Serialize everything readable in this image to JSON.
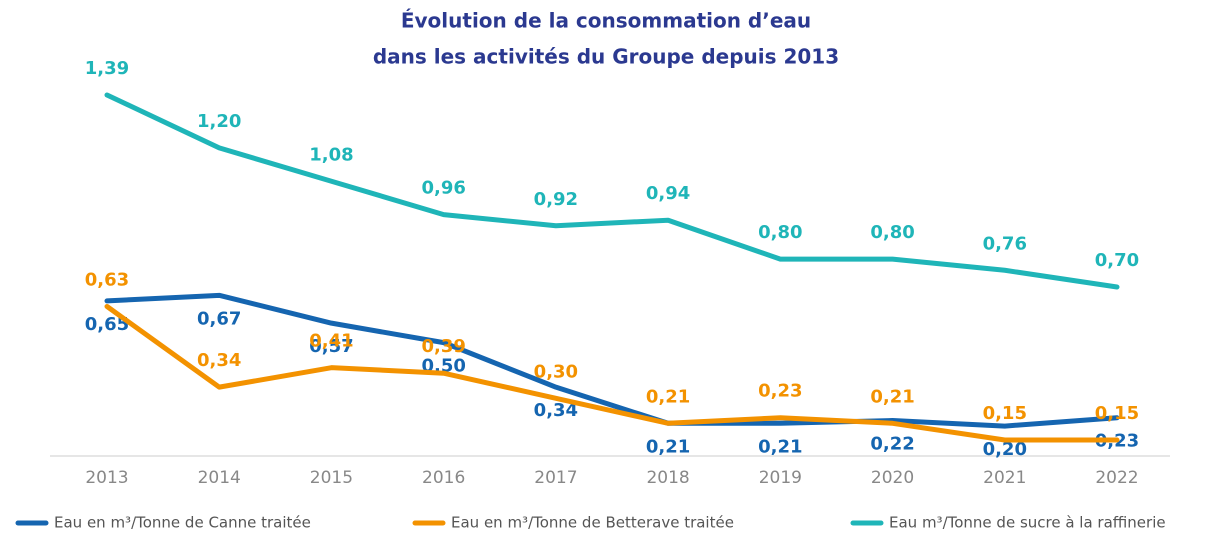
{
  "chart_data": {
    "type": "line",
    "title": [
      "Évolution de la consommation d’eau",
      "dans les activités du Groupe depuis 2013"
    ],
    "categories": [
      "2013",
      "2014",
      "2015",
      "2016",
      "2017",
      "2018",
      "2019",
      "2020",
      "2021",
      "2022"
    ],
    "series": [
      {
        "name": "Eau en m³/Tonne de Canne traitée",
        "color": "#1565b0",
        "values": [
          0.65,
          0.67,
          0.57,
          0.5,
          0.34,
          0.21,
          0.21,
          0.22,
          0.2,
          0.23
        ],
        "value_labels": [
          "0,65",
          "0,67",
          "0,57",
          "0,50",
          "0,34",
          "0,21",
          "0,21",
          "0,22",
          "0,20",
          "0,23"
        ]
      },
      {
        "name": "Eau en m³/Tonne de Betterave traitée",
        "color": "#f39200",
        "values": [
          0.63,
          0.34,
          0.41,
          0.39,
          0.3,
          0.21,
          0.23,
          0.21,
          0.15,
          0.15
        ],
        "value_labels": [
          "0,63",
          "0,34",
          "0,41",
          "0,39",
          "0,30",
          "0,21",
          "0,23",
          "0,21",
          "0,15",
          "0,15"
        ]
      },
      {
        "name": "Eau m³/Tonne de sucre à la raffinerie",
        "color": "#1fb5b8",
        "values": [
          1.39,
          1.2,
          1.08,
          0.96,
          0.92,
          0.94,
          0.8,
          0.8,
          0.76,
          0.7
        ],
        "value_labels": [
          "1,39",
          "1,20",
          "1,08",
          "0,96",
          "0,92",
          "0,94",
          "0,80",
          "0,80",
          "0,76",
          "0,70"
        ]
      }
    ]
  }
}
